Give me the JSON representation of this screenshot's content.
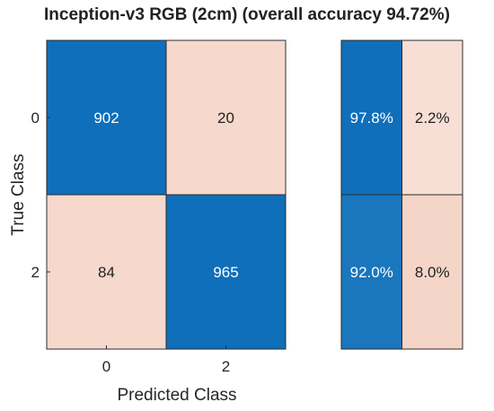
{
  "chart_data": {
    "type": "heatmap",
    "title": "Inception-v3 RGB (2cm) (overall accuracy 94.72%)",
    "xlabel": "Predicted Class",
    "ylabel": "True Class",
    "classes": [
      "0",
      "2"
    ],
    "matrix": [
      [
        902,
        20
      ],
      [
        84,
        965
      ]
    ],
    "row_summary": [
      [
        "97.8%",
        "2.2%"
      ],
      [
        "92.0%",
        "8.0%"
      ]
    ],
    "colors": {
      "correct": "#0f6fba",
      "incorrect": "#f6d8cc",
      "summary_correct_row1": "#0f6fba",
      "summary_correct_row2": "#1a76bd",
      "summary_incorrect_row1": "#f8dfd5",
      "summary_incorrect_row2": "#f4d5c7",
      "text_on_dark": "#ffffff",
      "text_on_light": "#222222"
    }
  }
}
